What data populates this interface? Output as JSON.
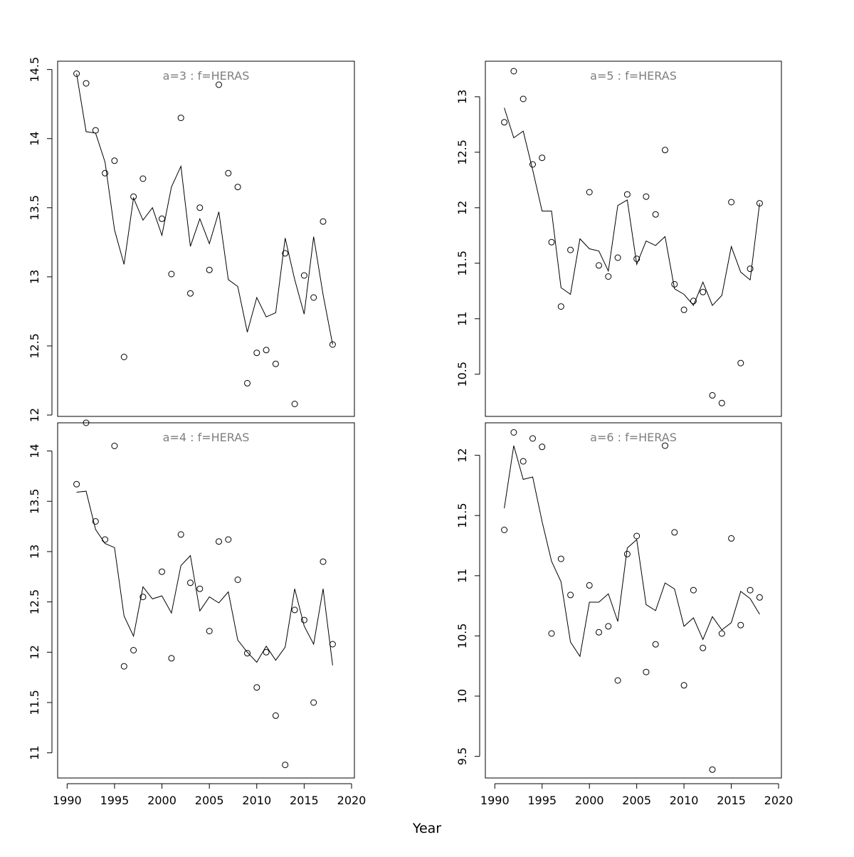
{
  "xlabel": "Year",
  "chart_data": [
    {
      "type": "scatter",
      "title": "a=3  :  f=HERAS",
      "xlim": [
        1989,
        2020.3
      ],
      "ylim": [
        11.99,
        14.56
      ],
      "xticks": [
        1990,
        1995,
        2000,
        2005,
        2010,
        2015,
        2020
      ],
      "yticks": [
        12.0,
        12.5,
        13.0,
        13.5,
        14.0,
        14.5
      ],
      "show_x_axis": false,
      "x": [
        1991,
        1992,
        1993,
        1994,
        1995,
        1996,
        1997,
        1998,
        1999,
        2000,
        2001,
        2002,
        2003,
        2004,
        2005,
        2006,
        2007,
        2008,
        2009,
        2010,
        2011,
        2012,
        2013,
        2014,
        2015,
        2016,
        2017,
        2018
      ],
      "observed": [
        14.47,
        14.4,
        14.06,
        13.75,
        13.84,
        12.42,
        13.58,
        13.71,
        null,
        13.42,
        13.02,
        14.15,
        12.88,
        13.5,
        13.05,
        14.39,
        13.75,
        13.65,
        12.23,
        12.45,
        12.47,
        12.37,
        13.17,
        12.08,
        13.01,
        12.85,
        13.4,
        12.51
      ],
      "fitted": [
        14.47,
        14.05,
        14.04,
        13.83,
        13.34,
        13.09,
        13.57,
        13.41,
        13.5,
        13.3,
        13.65,
        13.8,
        13.22,
        13.42,
        13.24,
        13.47,
        12.98,
        12.93,
        12.6,
        12.85,
        12.71,
        12.74,
        13.28,
        12.98,
        12.73,
        13.29,
        12.87,
        12.51
      ]
    },
    {
      "type": "scatter",
      "title": "a=5  :  f=HERAS",
      "xlim": [
        1989,
        2020.3
      ],
      "ylim": [
        10.12,
        13.32
      ],
      "xticks": [
        1990,
        1995,
        2000,
        2005,
        2010,
        2015,
        2020
      ],
      "yticks": [
        10.5,
        11.0,
        11.5,
        12.0,
        12.5,
        13.0
      ],
      "show_x_axis": false,
      "x": [
        1991,
        1992,
        1993,
        1994,
        1995,
        1996,
        1997,
        1998,
        1999,
        2000,
        2001,
        2002,
        2003,
        2004,
        2005,
        2006,
        2007,
        2008,
        2009,
        2010,
        2011,
        2012,
        2013,
        2014,
        2015,
        2016,
        2017,
        2018
      ],
      "observed": [
        12.77,
        13.23,
        12.98,
        12.39,
        12.45,
        11.69,
        11.11,
        11.62,
        null,
        12.14,
        11.48,
        11.38,
        11.55,
        12.12,
        11.54,
        12.1,
        11.94,
        12.52,
        11.31,
        11.08,
        11.16,
        11.24,
        10.31,
        10.24,
        12.05,
        10.6,
        11.45,
        12.04
      ],
      "fitted": [
        12.9,
        12.63,
        12.69,
        12.34,
        11.97,
        11.97,
        11.28,
        11.22,
        11.72,
        11.63,
        11.61,
        11.43,
        12.02,
        12.07,
        11.49,
        11.7,
        11.66,
        11.74,
        11.27,
        11.22,
        11.12,
        11.33,
        11.12,
        11.21,
        11.65,
        11.42,
        11.35,
        12.04
      ]
    },
    {
      "type": "scatter",
      "title": "a=4  :  f=HERAS",
      "xlim": [
        1989,
        2020.3
      ],
      "ylim": [
        10.75,
        14.28
      ],
      "xticks": [
        1990,
        1995,
        2000,
        2005,
        2010,
        2015,
        2020
      ],
      "yticks": [
        11.0,
        11.5,
        12.0,
        12.5,
        13.0,
        13.5,
        14.0
      ],
      "show_x_axis": true,
      "x": [
        1991,
        1992,
        1993,
        1994,
        1995,
        1996,
        1997,
        1998,
        1999,
        2000,
        2001,
        2002,
        2003,
        2004,
        2005,
        2006,
        2007,
        2008,
        2009,
        2010,
        2011,
        2012,
        2013,
        2014,
        2015,
        2016,
        2017,
        2018
      ],
      "observed": [
        13.67,
        14.28,
        13.3,
        13.12,
        14.05,
        11.86,
        12.02,
        12.55,
        null,
        12.8,
        11.94,
        13.17,
        12.69,
        12.63,
        12.21,
        13.1,
        13.12,
        12.72,
        11.99,
        11.65,
        12.0,
        11.37,
        10.88,
        12.42,
        12.32,
        11.5,
        12.9,
        12.08
      ],
      "fitted": [
        13.59,
        13.6,
        13.22,
        13.08,
        13.04,
        12.36,
        12.16,
        12.65,
        12.53,
        12.56,
        12.39,
        12.86,
        12.96,
        12.41,
        12.55,
        12.49,
        12.6,
        12.12,
        12.0,
        11.9,
        12.06,
        11.92,
        12.05,
        12.63,
        12.26,
        12.08,
        12.63,
        11.87
      ]
    },
    {
      "type": "scatter",
      "title": "a=6  :  f=HERAS",
      "xlim": [
        1989,
        2020.3
      ],
      "ylim": [
        9.32,
        12.27
      ],
      "xticks": [
        1990,
        1995,
        2000,
        2005,
        2010,
        2015,
        2020
      ],
      "yticks": [
        9.5,
        10.0,
        10.5,
        11.0,
        11.5,
        12.0
      ],
      "show_x_axis": true,
      "x": [
        1991,
        1992,
        1993,
        1994,
        1995,
        1996,
        1997,
        1998,
        1999,
        2000,
        2001,
        2002,
        2003,
        2004,
        2005,
        2006,
        2007,
        2008,
        2009,
        2010,
        2011,
        2012,
        2013,
        2014,
        2015,
        2016,
        2017,
        2018
      ],
      "observed": [
        11.38,
        12.19,
        11.95,
        12.14,
        12.07,
        10.52,
        11.14,
        10.84,
        null,
        10.92,
        10.53,
        10.58,
        10.13,
        11.18,
        11.33,
        10.2,
        10.43,
        12.08,
        11.36,
        10.09,
        10.88,
        10.4,
        9.39,
        10.52,
        11.31,
        10.59,
        10.88,
        10.82
      ],
      "fitted": [
        11.56,
        12.08,
        11.8,
        11.82,
        11.45,
        11.12,
        10.95,
        10.45,
        10.33,
        10.78,
        10.78,
        10.85,
        10.62,
        11.23,
        11.3,
        10.76,
        10.71,
        10.94,
        10.89,
        10.58,
        10.65,
        10.47,
        10.66,
        10.55,
        10.61,
        10.87,
        10.81,
        10.68
      ]
    }
  ]
}
